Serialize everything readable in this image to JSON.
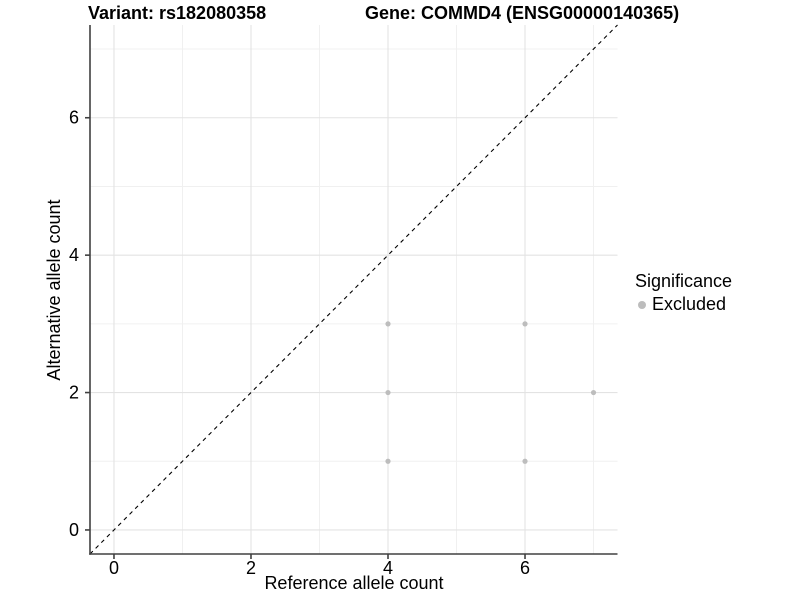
{
  "chart_data": {
    "type": "scatter",
    "title_left": "Variant: rs182080358",
    "title_right": "Gene: COMMD4 (ENSG00000140365)",
    "xlabel": "Reference allele count",
    "ylabel": "Alternative allele count",
    "xlim": [
      -0.35,
      7.35
    ],
    "ylim": [
      -0.35,
      7.35
    ],
    "x_ticks": [
      0,
      2,
      4,
      6
    ],
    "y_ticks": [
      0,
      2,
      4,
      6
    ],
    "x_minor_ticks": [
      1,
      3,
      5,
      7
    ],
    "y_minor_ticks": [
      1,
      3,
      5,
      7
    ],
    "grid": true,
    "series": [
      {
        "name": "Excluded",
        "color": "#bdbdbd",
        "points": [
          [
            4,
            1
          ],
          [
            4,
            2
          ],
          [
            4,
            3
          ],
          [
            6,
            1
          ],
          [
            6,
            3
          ],
          [
            7,
            2
          ]
        ]
      }
    ],
    "identity_line": {
      "style": "dashed",
      "color": "#000000",
      "from": [
        -0.35,
        -0.35
      ],
      "to": [
        7.35,
        7.35
      ]
    },
    "legend": {
      "title": "Significance",
      "position": "right",
      "items": [
        {
          "label": "Excluded",
          "color": "#bdbdbd",
          "marker": "circle"
        }
      ]
    },
    "colors": {
      "point": "#bdbdbd",
      "grid_major": "#e3e3e3",
      "grid_minor": "#f0f0f0",
      "axis": "#404040",
      "text": "#000000",
      "background": "#ffffff"
    }
  }
}
